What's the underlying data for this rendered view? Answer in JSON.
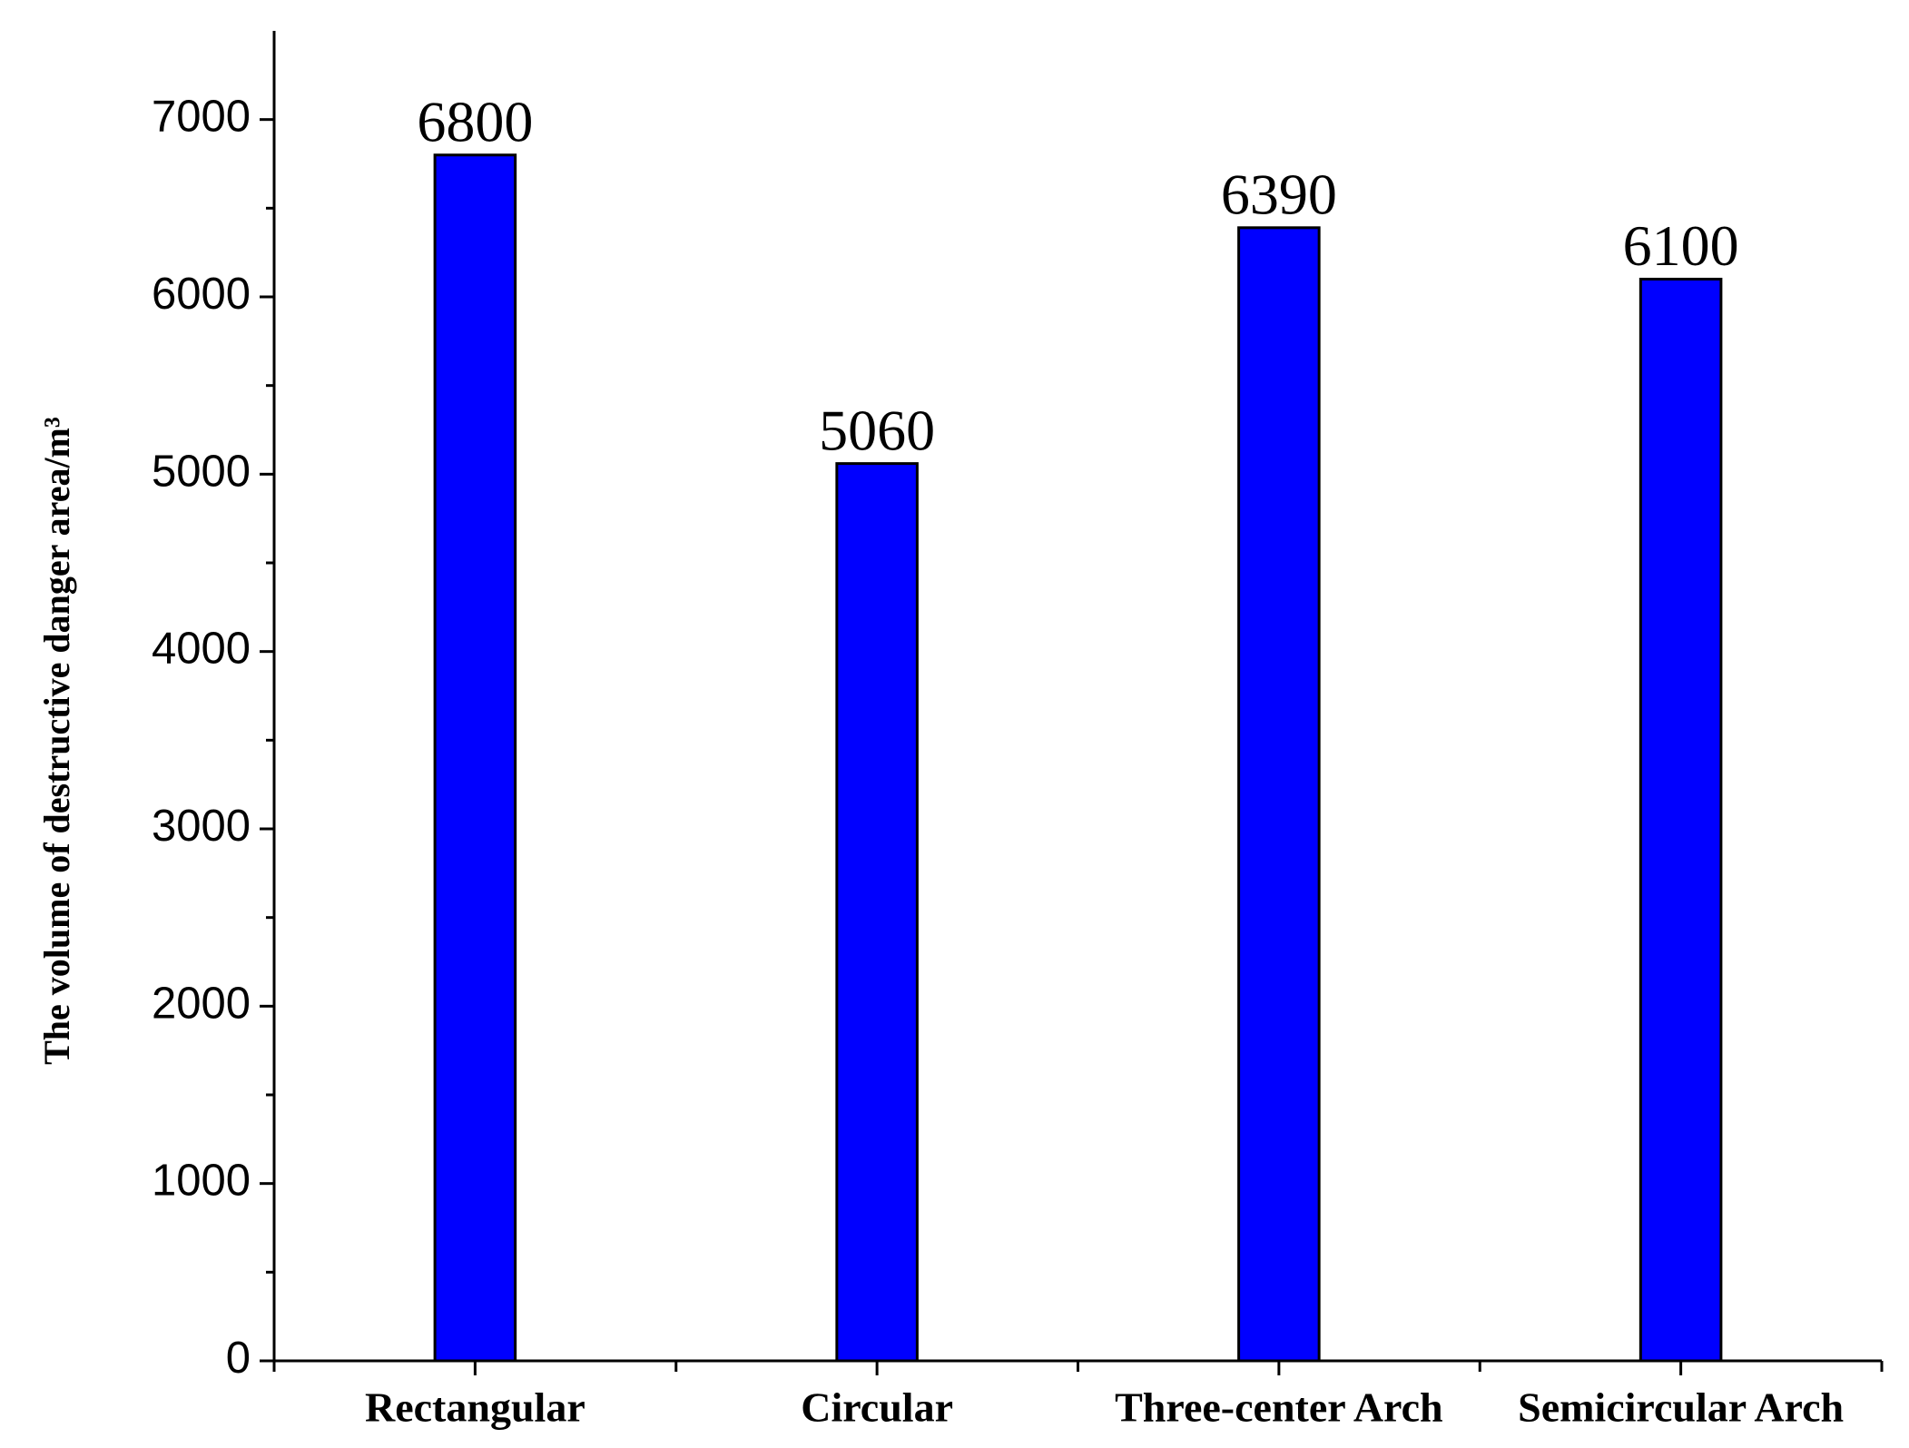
{
  "chart_data": {
    "type": "bar",
    "y_label": "The volume of destructive danger area/m³",
    "categories": [
      "Rectangular",
      "Circular",
      "Three-center Arch",
      "Semicircular Arch"
    ],
    "values": [
      6800,
      5060,
      6390,
      6100
    ],
    "color": "#0000ff",
    "ylim": [
      0,
      7500
    ],
    "yticks": [
      0,
      1000,
      2000,
      3000,
      4000,
      5000,
      6000,
      7000
    ],
    "grid": false
  }
}
